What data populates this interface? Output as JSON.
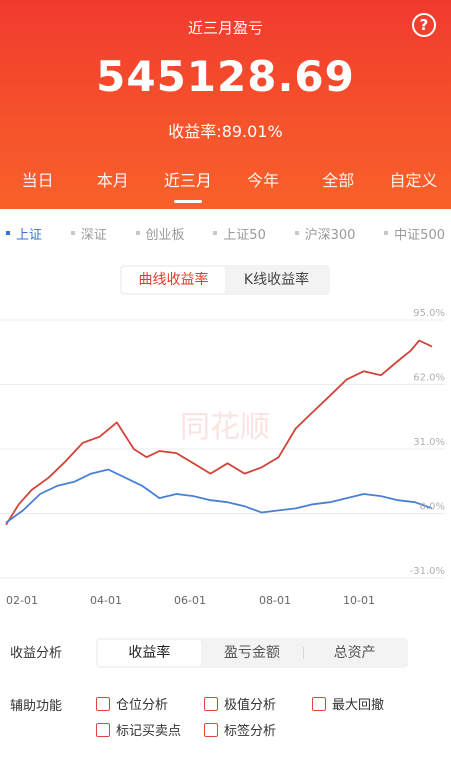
{
  "header": {
    "title": "近三月盈亏",
    "help_icon": "question-circle-icon",
    "amount": "545128.69",
    "rate_label": "收益率:",
    "rate_value": "89.01%"
  },
  "periods": [
    "当日",
    "本月",
    "近三月",
    "今年",
    "全部",
    "自定义"
  ],
  "active_period": 2,
  "indices": [
    "上证",
    "深证",
    "创业板",
    "上证50",
    "沪深300",
    "中证500"
  ],
  "active_index": 0,
  "chart_toggle": [
    "曲线收益率",
    "K线收益率"
  ],
  "active_chart_toggle": 0,
  "watermark": "同花顺",
  "chart_data": {
    "type": "line",
    "x_ticks": [
      "02-01",
      "04-01",
      "06-01",
      "08-01",
      "10-01"
    ],
    "y_ticks": [
      "95.0%",
      "62.0%",
      "31.0%",
      "0.0%",
      "-31.0%"
    ],
    "ylim": [
      -31,
      95
    ],
    "xlim": [
      0,
      100
    ],
    "grid": true,
    "series": [
      {
        "color": "#d2433a",
        "x": [
          0,
          3,
          6,
          10,
          14,
          18,
          22,
          26,
          30,
          33,
          36,
          40,
          44,
          48,
          52,
          56,
          60,
          64,
          68,
          72,
          76,
          80,
          84,
          88,
          92,
          95,
          97,
          100
        ],
        "y": [
          -5,
          5,
          12,
          18,
          26,
          35,
          38,
          45,
          32,
          28,
          31,
          30,
          25,
          20,
          25,
          20,
          23,
          28,
          42,
          50,
          58,
          66,
          70,
          68,
          75,
          80,
          85,
          82
        ]
      },
      {
        "color": "#4a7fd4",
        "x": [
          0,
          4,
          8,
          12,
          16,
          20,
          24,
          28,
          32,
          36,
          40,
          44,
          48,
          52,
          56,
          60,
          64,
          68,
          72,
          76,
          80,
          84,
          88,
          92,
          96,
          100
        ],
        "y": [
          -4,
          2,
          10,
          14,
          16,
          20,
          22,
          18,
          14,
          8,
          10,
          9,
          7,
          6,
          4,
          1,
          2,
          3,
          5,
          6,
          8,
          10,
          9,
          7,
          6,
          3
        ]
      }
    ]
  },
  "analysis": {
    "label": "收益分析",
    "tabs": [
      "收益率",
      "盈亏金额",
      "总资产"
    ],
    "active": 0
  },
  "aux": {
    "label": "辅助功能",
    "options": [
      "仓位分析",
      "极值分析",
      "最大回撤",
      "标记买卖点",
      "标签分析"
    ]
  }
}
